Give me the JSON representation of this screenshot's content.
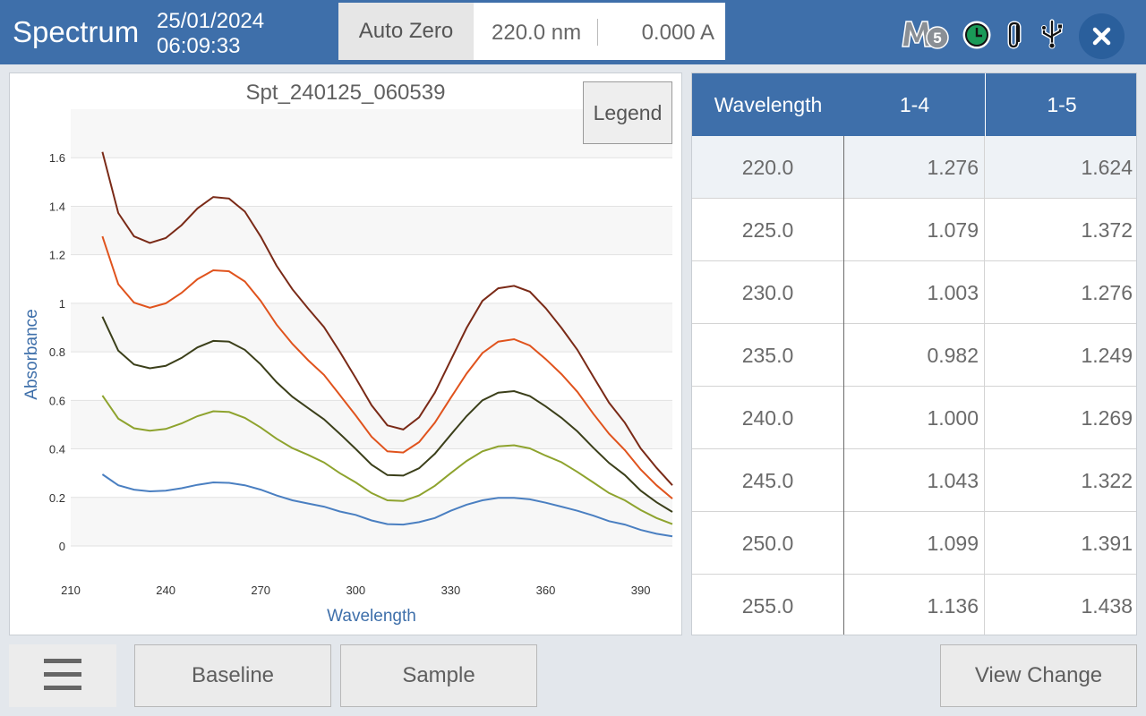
{
  "header": {
    "title": "Spectrum",
    "date": "25/01/2024",
    "time": "06:09:33",
    "auto_zero_label": "Auto Zero",
    "wavelength_readout": "220.0 nm",
    "absorbance_readout": "0.000 A",
    "icons": [
      "m5-badge-icon",
      "clock-icon",
      "paperclip-icon",
      "usb-icon",
      "close-icon"
    ],
    "m5_text": "M5"
  },
  "legend_label": "Legend",
  "chart_data": {
    "type": "line",
    "title": "Spt_240125_060539",
    "xlabel": "Wavelength",
    "ylabel": "Absorbance",
    "xlim": [
      210,
      400
    ],
    "ylim": [
      0,
      1.8
    ],
    "xticks": [
      210,
      240,
      270,
      300,
      330,
      360,
      390
    ],
    "yticks": [
      0,
      0.2,
      0.4,
      0.6,
      0.8,
      1,
      1.2,
      1.4,
      1.6
    ],
    "grid": true,
    "x": [
      220,
      225,
      230,
      235,
      240,
      245,
      250,
      255,
      260,
      265,
      270,
      275,
      280,
      285,
      290,
      295,
      300,
      305,
      310,
      315,
      320,
      325,
      330,
      335,
      340,
      345,
      350,
      355,
      360,
      365,
      370,
      375,
      380,
      385,
      390,
      395,
      400
    ],
    "series": [
      {
        "color": "#4a7fc1",
        "values": [
          0.295,
          0.25,
          0.232,
          0.225,
          0.228,
          0.238,
          0.252,
          0.262,
          0.26,
          0.25,
          0.232,
          0.208,
          0.188,
          0.175,
          0.162,
          0.142,
          0.128,
          0.105,
          0.09,
          0.088,
          0.098,
          0.115,
          0.145,
          0.17,
          0.188,
          0.198,
          0.198,
          0.192,
          0.178,
          0.162,
          0.145,
          0.125,
          0.102,
          0.088,
          0.066,
          0.05,
          0.04
        ]
      },
      {
        "color": "#8ea32e",
        "values": [
          0.62,
          0.525,
          0.485,
          0.475,
          0.482,
          0.505,
          0.535,
          0.555,
          0.552,
          0.528,
          0.488,
          0.442,
          0.403,
          0.375,
          0.344,
          0.3,
          0.262,
          0.218,
          0.188,
          0.185,
          0.208,
          0.248,
          0.3,
          0.35,
          0.39,
          0.41,
          0.415,
          0.402,
          0.372,
          0.345,
          0.305,
          0.262,
          0.218,
          0.188,
          0.148,
          0.115,
          0.09
        ]
      },
      {
        "color": "#3b3f1a",
        "values": [
          0.945,
          0.805,
          0.748,
          0.732,
          0.742,
          0.775,
          0.818,
          0.845,
          0.842,
          0.808,
          0.748,
          0.675,
          0.615,
          0.568,
          0.522,
          0.462,
          0.4,
          0.335,
          0.292,
          0.29,
          0.32,
          0.38,
          0.458,
          0.535,
          0.6,
          0.632,
          0.638,
          0.618,
          0.575,
          0.528,
          0.472,
          0.405,
          0.342,
          0.292,
          0.228,
          0.18,
          0.14
        ]
      },
      {
        "color": "#e0531d",
        "values": [
          1.276,
          1.079,
          1.003,
          0.982,
          1.0,
          1.043,
          1.099,
          1.136,
          1.132,
          1.09,
          1.01,
          0.912,
          0.833,
          0.765,
          0.705,
          0.622,
          0.538,
          0.45,
          0.39,
          0.385,
          0.428,
          0.508,
          0.61,
          0.71,
          0.795,
          0.842,
          0.852,
          0.826,
          0.77,
          0.708,
          0.635,
          0.545,
          0.462,
          0.395,
          0.315,
          0.25,
          0.195
        ]
      },
      {
        "color": "#7a2a17",
        "values": [
          1.624,
          1.372,
          1.276,
          1.249,
          1.269,
          1.322,
          1.391,
          1.438,
          1.432,
          1.378,
          1.275,
          1.155,
          1.058,
          0.978,
          0.902,
          0.8,
          0.692,
          0.58,
          0.497,
          0.48,
          0.53,
          0.632,
          0.765,
          0.898,
          1.01,
          1.062,
          1.072,
          1.048,
          0.98,
          0.898,
          0.808,
          0.698,
          0.59,
          0.508,
          0.402,
          0.322,
          0.25
        ]
      }
    ]
  },
  "table": {
    "headers": [
      "Wavelength",
      "1-4",
      "1-5"
    ],
    "rows": [
      [
        "220.0",
        "1.276",
        "1.624"
      ],
      [
        "225.0",
        "1.079",
        "1.372"
      ],
      [
        "230.0",
        "1.003",
        "1.276"
      ],
      [
        "235.0",
        "0.982",
        "1.249"
      ],
      [
        "240.0",
        "1.000",
        "1.269"
      ],
      [
        "245.0",
        "1.043",
        "1.322"
      ],
      [
        "250.0",
        "1.099",
        "1.391"
      ],
      [
        "255.0",
        "1.136",
        "1.438"
      ]
    ]
  },
  "footer": {
    "menu_icon": "hamburger-menu-icon",
    "baseline_label": "Baseline",
    "sample_label": "Sample",
    "view_change_label": "View Change"
  }
}
